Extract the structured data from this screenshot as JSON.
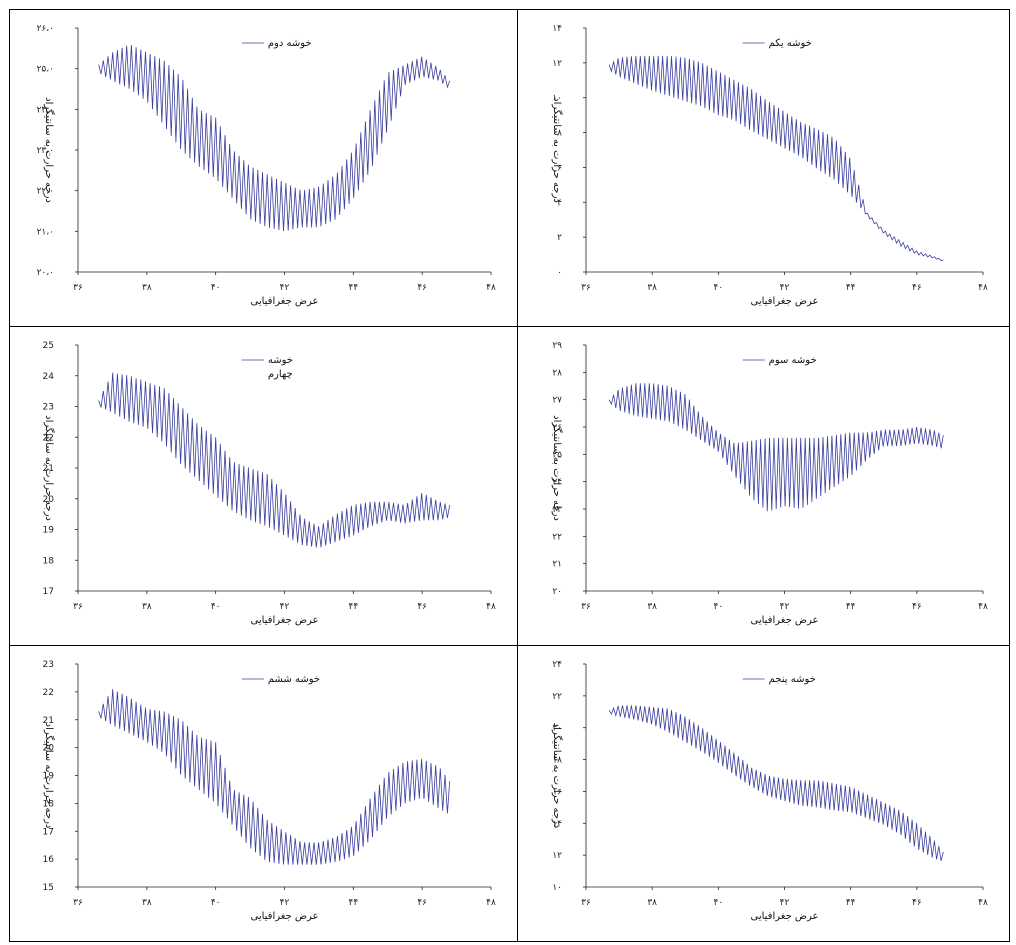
{
  "chart_data": [
    {
      "type": "line",
      "position_label": "top-left",
      "legend": "خوشه دوم",
      "xlabel": "عرض جغرافیایی",
      "ylabel": "درجه حرارت به سانتیگراد",
      "xlim": [
        36,
        48
      ],
      "ylim": [
        20,
        26
      ],
      "x_ticks": [
        "۳۶",
        "۳۸",
        "۴۰",
        "۴۲",
        "۴۴",
        "۴۶",
        "۴۸"
      ],
      "y_ticks": [
        "۲۰،۰",
        "۲۱،۰",
        "۲۲،۰",
        "۲۳،۰",
        "۲۴،۰",
        "۲۵،۰",
        "۲۶،۰"
      ],
      "series": [
        {
          "x": [
            36.6,
            37.0,
            37.5,
            38.0,
            38.5,
            39.0,
            39.5,
            40.0,
            40.5,
            41.0,
            41.5,
            42.0,
            42.5,
            43.0,
            43.5,
            44.0,
            44.5,
            45.0,
            45.5,
            46.0,
            46.5,
            46.8
          ],
          "upper": [
            25.1,
            25.4,
            25.6,
            25.4,
            25.2,
            24.8,
            24.0,
            23.8,
            23.0,
            22.6,
            22.4,
            22.2,
            22.0,
            22.1,
            22.4,
            23.0,
            24.0,
            24.9,
            25.1,
            25.3,
            25.0,
            24.7
          ],
          "lower": [
            24.9,
            24.7,
            24.5,
            24.2,
            23.6,
            23.0,
            22.6,
            22.3,
            21.8,
            21.3,
            21.1,
            21.0,
            21.1,
            21.1,
            21.3,
            21.8,
            22.5,
            23.5,
            24.6,
            24.8,
            24.7,
            24.5
          ]
        }
      ]
    },
    {
      "type": "line",
      "position_label": "top-right",
      "legend": "خوشه یکم",
      "xlabel": "عرض جغرافیایی",
      "ylabel": "درجه حرارت به سانتیگراد",
      "xlim": [
        36,
        48
      ],
      "ylim": [
        0,
        14
      ],
      "x_ticks": [
        "۳۶",
        "۳۸",
        "۴۰",
        "۴۲",
        "۴۴",
        "۴۶",
        "۴۸"
      ],
      "y_ticks": [
        "۰",
        "۲",
        "۴",
        "۶",
        "۸",
        "۱۰",
        "۱۲",
        "۱۴"
      ],
      "series": [
        {
          "x": [
            36.7,
            37.0,
            37.5,
            38.0,
            38.5,
            39.0,
            39.5,
            40.0,
            40.5,
            41.0,
            41.5,
            42.0,
            42.5,
            43.0,
            43.5,
            44.0,
            44.5,
            45.0,
            45.5,
            46.0,
            46.5,
            46.8
          ],
          "upper": [
            11.9,
            12.3,
            12.4,
            12.4,
            12.4,
            12.3,
            12.0,
            11.5,
            11.0,
            10.5,
            9.8,
            9.2,
            8.6,
            8.2,
            7.7,
            6.5,
            3.4,
            2.4,
            1.8,
            1.2,
            0.9,
            0.7
          ],
          "lower": [
            11.6,
            11.2,
            10.8,
            10.4,
            10.1,
            9.8,
            9.5,
            9.0,
            8.7,
            8.1,
            7.6,
            7.1,
            6.6,
            5.9,
            5.3,
            4.4,
            3.2,
            2.2,
            1.5,
            1.0,
            0.8,
            0.6
          ]
        }
      ]
    },
    {
      "type": "line",
      "position_label": "middle-left",
      "legend": "خوشه",
      "legend_line2": "چهارم",
      "xlabel": "عرض جغرافیایی",
      "ylabel": "درجه حرارت به سانتیگراد",
      "xlim": [
        36,
        48
      ],
      "ylim": [
        17,
        25
      ],
      "x_ticks": [
        "۳۶",
        "۳۸",
        "۴۰",
        "۴۲",
        "۴۴",
        "۴۶",
        "۴۸"
      ],
      "y_ticks": [
        "17",
        "18",
        "19",
        "20",
        "21",
        "22",
        "23",
        "24",
        "25"
      ],
      "series": [
        {
          "x": [
            36.6,
            37.0,
            37.5,
            38.0,
            38.5,
            39.0,
            39.5,
            40.0,
            40.5,
            41.0,
            41.5,
            42.0,
            42.5,
            43.0,
            43.5,
            44.0,
            44.5,
            45.0,
            45.5,
            46.0,
            46.5,
            46.8
          ],
          "upper": [
            23.2,
            24.1,
            24.0,
            23.8,
            23.6,
            23.0,
            22.4,
            22.0,
            21.2,
            21.0,
            20.8,
            20.2,
            19.4,
            19.1,
            19.5,
            19.8,
            19.9,
            19.9,
            19.8,
            20.2,
            19.9,
            19.8
          ],
          "lower": [
            23.0,
            22.8,
            22.5,
            22.3,
            21.8,
            21.1,
            20.6,
            20.1,
            19.6,
            19.3,
            19.1,
            18.8,
            18.5,
            18.4,
            18.6,
            18.8,
            19.1,
            19.3,
            19.2,
            19.3,
            19.3,
            19.4
          ]
        }
      ]
    },
    {
      "type": "line",
      "position_label": "middle-right",
      "legend": "خوشه سوم",
      "xlabel": "عرض جغرافیایی",
      "ylabel": "درجه حرارت به سانتیگراد",
      "xlim": [
        36,
        48
      ],
      "ylim": [
        20,
        29
      ],
      "x_ticks": [
        "۳۶",
        "۳۸",
        "۴۰",
        "۴۲",
        "۴۴",
        "۴۶",
        "۴۸"
      ],
      "y_ticks": [
        "۲۰",
        "۲۱",
        "۲۲",
        "۲۳",
        "۲۴",
        "۲۵",
        "۲۶",
        "۲۷",
        "۲۸",
        "۲۹"
      ],
      "series": [
        {
          "x": [
            36.7,
            37.0,
            37.5,
            38.0,
            38.5,
            39.0,
            39.5,
            40.0,
            40.5,
            41.0,
            41.5,
            42.0,
            42.5,
            43.0,
            43.5,
            44.0,
            44.5,
            45.0,
            45.5,
            46.0,
            46.5,
            46.8
          ],
          "upper": [
            27.0,
            27.4,
            27.6,
            27.6,
            27.5,
            27.2,
            26.4,
            25.8,
            25.4,
            25.5,
            25.6,
            25.6,
            25.6,
            25.6,
            25.7,
            25.8,
            25.8,
            25.9,
            25.9,
            26.0,
            25.9,
            25.7
          ],
          "lower": [
            26.9,
            26.6,
            26.4,
            26.3,
            26.2,
            25.9,
            25.5,
            25.1,
            24.2,
            23.4,
            22.9,
            23.1,
            23.0,
            23.4,
            23.8,
            24.2,
            24.8,
            25.3,
            25.3,
            25.4,
            25.3,
            25.2
          ]
        }
      ]
    },
    {
      "type": "line",
      "position_label": "bottom-left",
      "legend": "خوشه ششم",
      "xlabel": "عرض جغرافیایی",
      "ylabel": "درجه حرارت به سانتیگراد",
      "xlim": [
        36,
        48
      ],
      "ylim": [
        15,
        23
      ],
      "x_ticks": [
        "۳۶",
        "۳۸",
        "۴۰",
        "۴۲",
        "۴۴",
        "۴۶",
        "۴۸"
      ],
      "y_ticks": [
        "15",
        "16",
        "17",
        "18",
        "19",
        "20",
        "21",
        "22",
        "23"
      ],
      "series": [
        {
          "x": [
            36.6,
            37.0,
            37.5,
            38.0,
            38.5,
            39.0,
            39.5,
            40.0,
            40.5,
            41.0,
            41.5,
            42.0,
            42.5,
            43.0,
            43.5,
            44.0,
            44.5,
            45.0,
            45.5,
            46.0,
            46.5,
            46.8
          ],
          "upper": [
            21.3,
            22.1,
            21.8,
            21.4,
            21.3,
            21.0,
            20.4,
            20.2,
            18.5,
            18.2,
            17.4,
            17.0,
            16.6,
            16.6,
            16.8,
            17.2,
            18.2,
            19.1,
            19.5,
            19.6,
            19.3,
            18.8
          ],
          "lower": [
            21.1,
            20.8,
            20.5,
            20.2,
            19.8,
            19.0,
            18.5,
            18.0,
            17.2,
            16.4,
            15.9,
            15.8,
            15.8,
            15.8,
            15.9,
            16.1,
            16.7,
            17.5,
            18.0,
            18.2,
            17.8,
            17.6
          ]
        }
      ]
    },
    {
      "type": "line",
      "position_label": "bottom-right",
      "legend": "خوشه پنجم",
      "xlabel": "عرض جغرافیایی",
      "ylabel": "درجه حرارت به سانتیگراد",
      "xlim": [
        36,
        48
      ],
      "ylim": [
        10,
        24
      ],
      "x_ticks": [
        "۳۶",
        "۳۸",
        "۴۰",
        "۴۲",
        "۴۴",
        "۴۶",
        "۴۸"
      ],
      "y_ticks": [
        "۱۰",
        "۱۲",
        "۱۴",
        "۱۶",
        "۱۸",
        "۲۰",
        "۲۲",
        "۲۴"
      ],
      "series": [
        {
          "x": [
            36.7,
            37.0,
            37.5,
            38.0,
            38.5,
            39.0,
            39.5,
            40.0,
            40.5,
            41.0,
            41.5,
            42.0,
            42.5,
            43.0,
            43.5,
            44.0,
            44.5,
            45.0,
            45.5,
            46.0,
            46.5,
            46.8
          ],
          "upper": [
            21.1,
            21.4,
            21.4,
            21.3,
            21.2,
            20.7,
            20.0,
            19.2,
            18.4,
            17.5,
            17.0,
            16.8,
            16.7,
            16.7,
            16.5,
            16.3,
            15.8,
            15.3,
            14.8,
            14.0,
            13.0,
            12.2
          ],
          "lower": [
            20.9,
            20.7,
            20.5,
            20.2,
            19.7,
            19.1,
            18.5,
            17.8,
            17.0,
            16.3,
            15.7,
            15.4,
            15.1,
            15.0,
            14.8,
            14.7,
            14.3,
            13.9,
            13.3,
            12.4,
            11.8,
            11.6
          ]
        }
      ]
    }
  ]
}
